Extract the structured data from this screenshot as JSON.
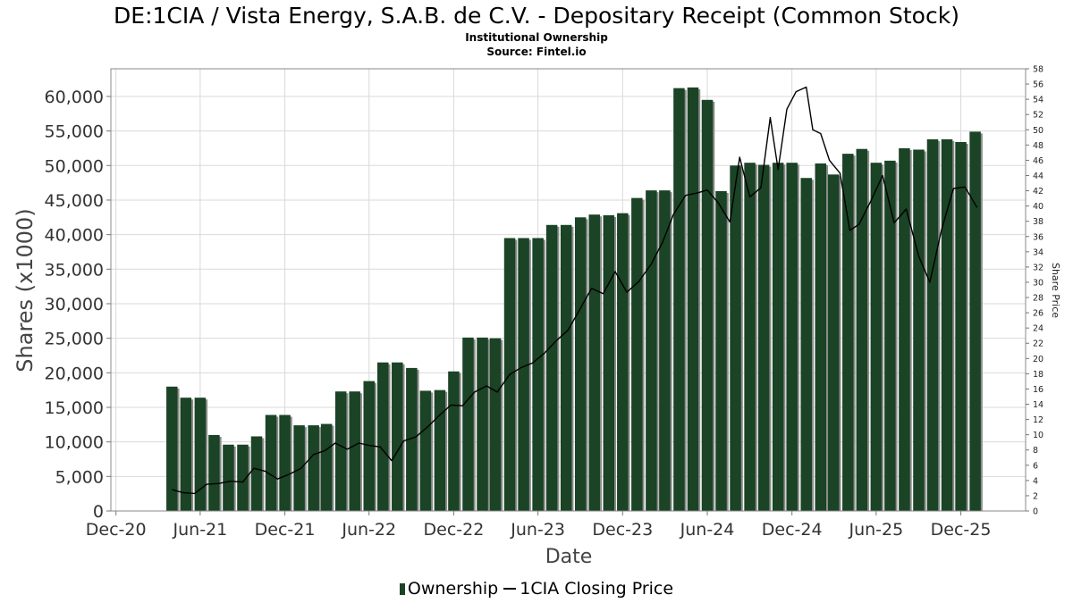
{
  "title": "DE:1CIA / Vista Energy, S.A.B. de C.V. - Depositary Receipt (Common Stock)",
  "subtitle_1": "Institutional Ownership",
  "subtitle_2": "Source: Fintel.io",
  "colors": {
    "bar": "#1b4325",
    "bar_shadow": "#8c8c8c",
    "line": "#000000",
    "grid": "#d9d9d9",
    "axis": "#777777"
  },
  "legend": {
    "ownership": "Ownership",
    "price": "1CIA Closing Price"
  },
  "chart_data": {
    "type": "bar",
    "xlabel": "Date",
    "ylabel": "Shares (x1000)",
    "y2label": "Share Price",
    "ylim": [
      0,
      64000
    ],
    "y2lim": [
      0,
      58
    ],
    "y_ticks": [
      {
        "value": 0,
        "label": "0"
      },
      {
        "value": 5000,
        "label": "5,000"
      },
      {
        "value": 10000,
        "label": "10,000"
      },
      {
        "value": 15000,
        "label": "15,000"
      },
      {
        "value": 20000,
        "label": "20,000"
      },
      {
        "value": 25000,
        "label": "25,000"
      },
      {
        "value": 30000,
        "label": "30,000"
      },
      {
        "value": 35000,
        "label": "35,000"
      },
      {
        "value": 40000,
        "label": "40,000"
      },
      {
        "value": 45000,
        "label": "45,000"
      },
      {
        "value": 50000,
        "label": "50,000"
      },
      {
        "value": 55000,
        "label": "55,000"
      },
      {
        "value": 60000,
        "label": "60,000"
      }
    ],
    "y2_ticks": [
      0,
      2,
      4,
      6,
      8,
      10,
      12,
      14,
      16,
      18,
      20,
      22,
      24,
      26,
      28,
      30,
      32,
      34,
      36,
      38,
      40,
      42,
      44,
      46,
      48,
      50,
      52,
      54,
      56,
      58
    ],
    "x_range": [
      "2020-11-20",
      "2026-04-20"
    ],
    "x_ticks": [
      {
        "date": "2020-12-01",
        "label": "Dec-20"
      },
      {
        "date": "2021-06-01",
        "label": "Jun-21"
      },
      {
        "date": "2021-12-01",
        "label": "Dec-21"
      },
      {
        "date": "2022-06-01",
        "label": "Jun-22"
      },
      {
        "date": "2022-12-01",
        "label": "Dec-22"
      },
      {
        "date": "2023-06-01",
        "label": "Jun-23"
      },
      {
        "date": "2023-12-01",
        "label": "Dec-23"
      },
      {
        "date": "2024-06-01",
        "label": "Jun-24"
      },
      {
        "date": "2024-12-01",
        "label": "Dec-24"
      },
      {
        "date": "2025-06-01",
        "label": "Jun-25"
      },
      {
        "date": "2025-12-01",
        "label": "Dec-25"
      }
    ],
    "grid": true,
    "legend_position": "bottom-center",
    "series": [
      {
        "name": "Ownership",
        "type": "bar",
        "x": [
          "2021-04-01",
          "2021-05-01",
          "2021-06-01",
          "2021-07-01",
          "2021-08-01",
          "2021-09-01",
          "2021-10-01",
          "2021-11-01",
          "2021-12-01",
          "2022-01-01",
          "2022-02-01",
          "2022-03-01",
          "2022-04-01",
          "2022-05-01",
          "2022-06-01",
          "2022-07-01",
          "2022-08-01",
          "2022-09-01",
          "2022-10-01",
          "2022-11-01",
          "2022-12-01",
          "2023-01-01",
          "2023-02-01",
          "2023-03-01",
          "2023-04-01",
          "2023-05-01",
          "2023-06-01",
          "2023-07-01",
          "2023-08-01",
          "2023-09-01",
          "2023-10-01",
          "2023-11-01",
          "2023-12-01",
          "2024-01-01",
          "2024-02-01",
          "2024-03-01",
          "2024-04-01",
          "2024-05-01",
          "2024-06-01",
          "2024-07-01",
          "2024-08-01",
          "2024-09-01",
          "2024-10-01",
          "2024-11-01",
          "2024-12-01",
          "2025-01-01",
          "2025-02-01",
          "2025-03-01",
          "2025-04-01",
          "2025-05-01",
          "2025-06-01",
          "2025-07-01",
          "2025-08-01",
          "2025-09-01",
          "2025-10-01",
          "2025-11-01",
          "2025-12-01",
          "2026-01-01"
        ],
        "values": [
          18000,
          16400,
          16400,
          11000,
          9600,
          9600,
          10800,
          13900,
          13900,
          12400,
          12400,
          12600,
          17300,
          17300,
          18800,
          21500,
          21500,
          20700,
          17400,
          17500,
          20200,
          25100,
          25100,
          25000,
          39500,
          39500,
          39500,
          41400,
          41400,
          42500,
          42900,
          42800,
          43100,
          45300,
          46400,
          46400,
          61200,
          61300,
          59500,
          46300,
          50000,
          50400,
          50100,
          50400,
          50400,
          48200,
          50300,
          48700,
          51700,
          52400,
          50400,
          50700,
          52500,
          52300,
          53800,
          53800,
          53400,
          54900
        ]
      },
      {
        "name": "1CIA Closing Price",
        "type": "line",
        "points": [
          [
            "2021-04-01",
            2.8
          ],
          [
            "2021-04-25",
            2.4
          ],
          [
            "2021-05-20",
            2.3
          ],
          [
            "2021-06-15",
            3.5
          ],
          [
            "2021-07-10",
            3.6
          ],
          [
            "2021-08-05",
            3.9
          ],
          [
            "2021-09-01",
            3.8
          ],
          [
            "2021-09-25",
            5.6
          ],
          [
            "2021-10-20",
            5.2
          ],
          [
            "2021-11-15",
            4.2
          ],
          [
            "2021-12-10",
            4.8
          ],
          [
            "2022-01-05",
            5.6
          ],
          [
            "2022-02-01",
            7.4
          ],
          [
            "2022-02-25",
            7.9
          ],
          [
            "2022-03-20",
            8.9
          ],
          [
            "2022-04-15",
            8.1
          ],
          [
            "2022-05-10",
            8.9
          ],
          [
            "2022-06-01",
            8.6
          ],
          [
            "2022-06-25",
            8.4
          ],
          [
            "2022-07-20",
            6.6
          ],
          [
            "2022-08-15",
            9.2
          ],
          [
            "2022-09-10",
            9.7
          ],
          [
            "2022-10-05",
            11.0
          ],
          [
            "2022-11-01",
            12.6
          ],
          [
            "2022-11-25",
            13.9
          ],
          [
            "2022-12-20",
            13.8
          ],
          [
            "2023-01-15",
            15.6
          ],
          [
            "2023-02-10",
            16.4
          ],
          [
            "2023-03-05",
            15.6
          ],
          [
            "2023-04-01",
            17.9
          ],
          [
            "2023-04-25",
            18.8
          ],
          [
            "2023-05-20",
            19.4
          ],
          [
            "2023-06-15",
            20.7
          ],
          [
            "2023-07-10",
            22.3
          ],
          [
            "2023-08-05",
            23.7
          ],
          [
            "2023-09-01",
            26.6
          ],
          [
            "2023-09-25",
            29.2
          ],
          [
            "2023-10-20",
            28.5
          ],
          [
            "2023-11-15",
            31.4
          ],
          [
            "2023-12-10",
            28.7
          ],
          [
            "2024-01-05",
            30.1
          ],
          [
            "2024-02-01",
            32.4
          ],
          [
            "2024-02-25",
            35.2
          ],
          [
            "2024-03-20",
            38.9
          ],
          [
            "2024-04-15",
            41.4
          ],
          [
            "2024-05-10",
            41.7
          ],
          [
            "2024-06-01",
            42.1
          ],
          [
            "2024-06-25",
            40.4
          ],
          [
            "2024-07-20",
            37.9
          ],
          [
            "2024-08-10",
            46.4
          ],
          [
            "2024-09-01",
            41.2
          ],
          [
            "2024-09-25",
            42.4
          ],
          [
            "2024-10-15",
            51.6
          ],
          [
            "2024-11-01",
            44.8
          ],
          [
            "2024-11-20",
            52.7
          ],
          [
            "2024-12-10",
            55.0
          ],
          [
            "2025-01-01",
            55.6
          ],
          [
            "2025-01-15",
            50.0
          ],
          [
            "2025-02-01",
            49.5
          ],
          [
            "2025-02-20",
            46.0
          ],
          [
            "2025-03-15",
            44.3
          ],
          [
            "2025-04-05",
            36.8
          ],
          [
            "2025-04-25",
            37.6
          ],
          [
            "2025-05-20",
            40.6
          ],
          [
            "2025-06-15",
            44.0
          ],
          [
            "2025-07-10",
            37.8
          ],
          [
            "2025-08-05",
            39.6
          ],
          [
            "2025-09-01",
            33.4
          ],
          [
            "2025-09-25",
            30.0
          ],
          [
            "2025-10-20",
            36.8
          ],
          [
            "2025-11-15",
            42.3
          ],
          [
            "2025-12-10",
            42.5
          ],
          [
            "2026-01-05",
            39.8
          ]
        ]
      }
    ]
  }
}
